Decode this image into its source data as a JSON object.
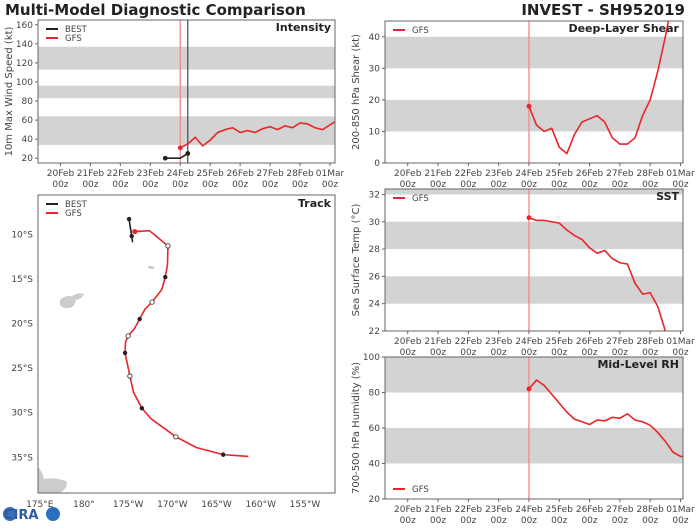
{
  "header": {
    "title": "Multi-Model Diagnostic Comparison",
    "storm": "INVEST - SH952019"
  },
  "logo": {
    "text": "CIRA"
  },
  "colors": {
    "best": "#222222",
    "gfs": "#e8262a",
    "band": "#d3d3d3",
    "land": "#cccccc"
  },
  "x_ticks": [
    {
      "date": "20Feb",
      "hour": "00z"
    },
    {
      "date": "21Feb",
      "hour": "00z"
    },
    {
      "date": "22Feb",
      "hour": "00z"
    },
    {
      "date": "23Feb",
      "hour": "00z"
    },
    {
      "date": "24Feb",
      "hour": "00z"
    },
    {
      "date": "25Feb",
      "hour": "00z"
    },
    {
      "date": "26Feb",
      "hour": "00z"
    },
    {
      "date": "27Feb",
      "hour": "00z"
    },
    {
      "date": "28Feb",
      "hour": "00z"
    },
    {
      "date": "01Mar",
      "hour": "00z"
    }
  ],
  "chart_data": [
    {
      "type": "line",
      "title": "Intensity",
      "ylabel": "10m Max Wind Speed (kt)",
      "ylim": [
        15,
        165
      ],
      "xlim": [
        "19Feb 06z",
        "01Mar 04z"
      ],
      "yticks": [
        20,
        40,
        60,
        80,
        100,
        120,
        140,
        160
      ],
      "shaded_bands": [
        [
          34,
          64
        ],
        [
          83,
          96
        ],
        [
          113,
          137
        ]
      ],
      "vlines": [
        {
          "time": "24Feb 00z",
          "series": "GFS"
        },
        {
          "time": "24Feb 06z",
          "series": "BEST"
        }
      ],
      "legend": "top-left",
      "series": [
        {
          "name": "BEST",
          "x": [
            "23Feb 12z",
            "23Feb 18z",
            "24Feb 00z",
            "24Feb 06z"
          ],
          "values": [
            20,
            20,
            20,
            25
          ]
        },
        {
          "name": "GFS",
          "x": [
            "24Feb 00z",
            "24Feb 06z",
            "24Feb 12z",
            "24Feb 18z",
            "25Feb 00z",
            "25Feb 06z",
            "25Feb 12z",
            "25Feb 18z",
            "26Feb 00z",
            "26Feb 06z",
            "26Feb 12z",
            "26Feb 18z",
            "27Feb 00z",
            "27Feb 06z",
            "27Feb 12z",
            "27Feb 18z",
            "28Feb 00z",
            "28Feb 06z",
            "28Feb 12z",
            "28Feb 18z",
            "01Mar 00z",
            "01Mar 06z"
          ],
          "values": [
            31,
            35,
            42,
            33,
            39,
            47,
            50,
            52,
            47,
            49,
            47,
            51,
            53,
            50,
            54,
            52,
            57,
            56,
            52,
            50,
            55,
            60
          ]
        }
      ]
    },
    {
      "type": "line",
      "title": "Deep-Layer Shear",
      "ylabel": "200-850 hPa Shear (kt)",
      "ylim": [
        0,
        45
      ],
      "xlim": [
        "19Feb 06z",
        "01Mar 02z"
      ],
      "yticks": [
        0,
        10,
        20,
        30,
        40
      ],
      "shaded_bands": [
        [
          10,
          20
        ],
        [
          30,
          40
        ]
      ],
      "vlines": [
        {
          "time": "24Feb 00z",
          "series": "GFS"
        }
      ],
      "legend": "top-left",
      "series": [
        {
          "name": "GFS",
          "x": [
            "24Feb 00z",
            "24Feb 06z",
            "24Feb 12z",
            "24Feb 18z",
            "25Feb 00z",
            "25Feb 06z",
            "25Feb 12z",
            "25Feb 18z",
            "26Feb 00z",
            "26Feb 06z",
            "26Feb 12z",
            "26Feb 18z",
            "27Feb 00z",
            "27Feb 06z",
            "27Feb 12z",
            "27Feb 18z",
            "28Feb 00z",
            "28Feb 06z",
            "28Feb 12z",
            "28Feb 18z"
          ],
          "values": [
            18,
            12,
            10,
            11,
            5,
            3,
            9,
            13,
            14,
            15,
            13,
            8,
            6,
            6,
            8,
            15,
            20,
            29,
            40,
            52
          ]
        }
      ]
    },
    {
      "type": "line",
      "title": "SST",
      "ylabel": "Sea Surface Temp (°C)",
      "ylim": [
        22,
        32.4
      ],
      "xlim": [
        "19Feb 06z",
        "01Mar 02z"
      ],
      "yticks": [
        22,
        24,
        26,
        28,
        30,
        32
      ],
      "shaded_bands": [
        [
          24,
          26
        ],
        [
          28,
          30
        ],
        [
          32,
          33
        ]
      ],
      "vlines": [
        {
          "time": "24Feb 00z",
          "series": "GFS"
        }
      ],
      "legend": "top-left",
      "series": [
        {
          "name": "GFS",
          "x": [
            "24Feb 00z",
            "24Feb 06z",
            "24Feb 12z",
            "24Feb 18z",
            "25Feb 00z",
            "25Feb 06z",
            "25Feb 12z",
            "25Feb 18z",
            "26Feb 00z",
            "26Feb 06z",
            "26Feb 12z",
            "26Feb 18z",
            "27Feb 00z",
            "27Feb 06z",
            "27Feb 12z",
            "27Feb 18z",
            "28Feb 00z",
            "28Feb 06z",
            "28Feb 12z"
          ],
          "values": [
            30.3,
            30.1,
            30.1,
            30.0,
            29.9,
            29.4,
            29.0,
            28.7,
            28.1,
            27.7,
            27.9,
            27.3,
            27.0,
            26.9,
            25.5,
            24.7,
            24.8,
            23.8,
            22.0
          ]
        }
      ]
    },
    {
      "type": "line",
      "title": "Mid-Level RH",
      "ylabel": "700-500 hPa Humidity (%)",
      "ylim": [
        20,
        100
      ],
      "xlim": [
        "19Feb 06z",
        "01Mar 02z"
      ],
      "yticks": [
        20,
        40,
        60,
        80,
        100
      ],
      "shaded_bands": [
        [
          40,
          60
        ],
        [
          80,
          100
        ]
      ],
      "vlines": [
        {
          "time": "24Feb 00z",
          "series": "GFS"
        }
      ],
      "legend": "bottom-left",
      "series": [
        {
          "name": "GFS",
          "x": [
            "24Feb 00z",
            "24Feb 06z",
            "24Feb 12z",
            "24Feb 18z",
            "25Feb 00z",
            "25Feb 06z",
            "25Feb 12z",
            "25Feb 18z",
            "26Feb 00z",
            "26Feb 06z",
            "26Feb 12z",
            "26Feb 18z",
            "27Feb 00z",
            "27Feb 06z",
            "27Feb 12z",
            "27Feb 18z",
            "28Feb 00z",
            "28Feb 06z",
            "28Feb 12z",
            "28Feb 18z",
            "01Mar 00z",
            "01Mar 06z"
          ],
          "values": [
            82,
            87,
            84,
            79,
            74,
            69,
            65,
            63.5,
            62,
            64.5,
            64,
            66,
            65.5,
            68,
            64.5,
            63.5,
            61.5,
            57.5,
            52.5,
            46.5,
            44,
            44
          ]
        }
      ]
    },
    {
      "type": "scatter",
      "title": "Track",
      "legend": "top-left",
      "lon_range_deg_east": [
        174.8,
        208.4
      ],
      "lat_range": [
        -5.6,
        -39.0
      ],
      "lon_ticks": [
        {
          "lon": 175,
          "label": "175°E"
        },
        {
          "lon": 180,
          "label": "180°"
        },
        {
          "lon": 185,
          "label": "175°W"
        },
        {
          "lon": 190,
          "label": "170°W"
        },
        {
          "lon": 195,
          "label": "165°W"
        },
        {
          "lon": 200,
          "label": "160°W"
        },
        {
          "lon": 205,
          "label": "155°W"
        }
      ],
      "lat_ticks": [
        {
          "lat": -10,
          "label": "10°S"
        },
        {
          "lat": -15,
          "label": "15°S"
        },
        {
          "lat": -20,
          "label": "20°S"
        },
        {
          "lat": -25,
          "label": "25°S"
        },
        {
          "lat": -30,
          "label": "30°S"
        },
        {
          "lat": -35,
          "label": "35°S"
        }
      ],
      "series": [
        {
          "name": "BEST",
          "points": [
            {
              "lon": 185.1,
              "lat": -8.3,
              "marker": "filled"
            },
            {
              "lon": 185.4,
              "lat": -10.2,
              "marker": "filled"
            },
            {
              "lon": 185.5,
              "lat": -10.9,
              "marker": "none"
            }
          ]
        },
        {
          "name": "GFS",
          "points": [
            {
              "lon": 185.75,
              "lat": -9.7,
              "marker": "start"
            },
            {
              "lon": 187.4,
              "lat": -9.6,
              "marker": "none"
            },
            {
              "lon": 189.5,
              "lat": -11.3,
              "marker": "open"
            },
            {
              "lon": 189.45,
              "lat": -13.4,
              "marker": "none"
            },
            {
              "lon": 189.2,
              "lat": -14.8,
              "marker": "filled"
            },
            {
              "lon": 188.8,
              "lat": -16.2,
              "marker": "none"
            },
            {
              "lon": 187.7,
              "lat": -17.6,
              "marker": "open"
            },
            {
              "lon": 186.9,
              "lat": -18.4,
              "marker": "none"
            },
            {
              "lon": 186.3,
              "lat": -19.5,
              "marker": "filled"
            },
            {
              "lon": 185.7,
              "lat": -20.6,
              "marker": "none"
            },
            {
              "lon": 185.0,
              "lat": -21.4,
              "marker": "open"
            },
            {
              "lon": 184.7,
              "lat": -22.1,
              "marker": "none"
            },
            {
              "lon": 184.65,
              "lat": -23.3,
              "marker": "filled"
            },
            {
              "lon": 185.2,
              "lat": -25.9,
              "marker": "open"
            },
            {
              "lon": 185.6,
              "lat": -27.7,
              "marker": "none"
            },
            {
              "lon": 186.55,
              "lat": -29.5,
              "marker": "filled"
            },
            {
              "lon": 187.6,
              "lat": -30.7,
              "marker": "none"
            },
            {
              "lon": 190.4,
              "lat": -32.7,
              "marker": "open"
            },
            {
              "lon": 192.7,
              "lat": -33.9,
              "marker": "none"
            },
            {
              "lon": 195.75,
              "lat": -34.7,
              "marker": "filled"
            },
            {
              "lon": 198.6,
              "lat": -34.9,
              "marker": "none"
            }
          ]
        }
      ]
    }
  ]
}
